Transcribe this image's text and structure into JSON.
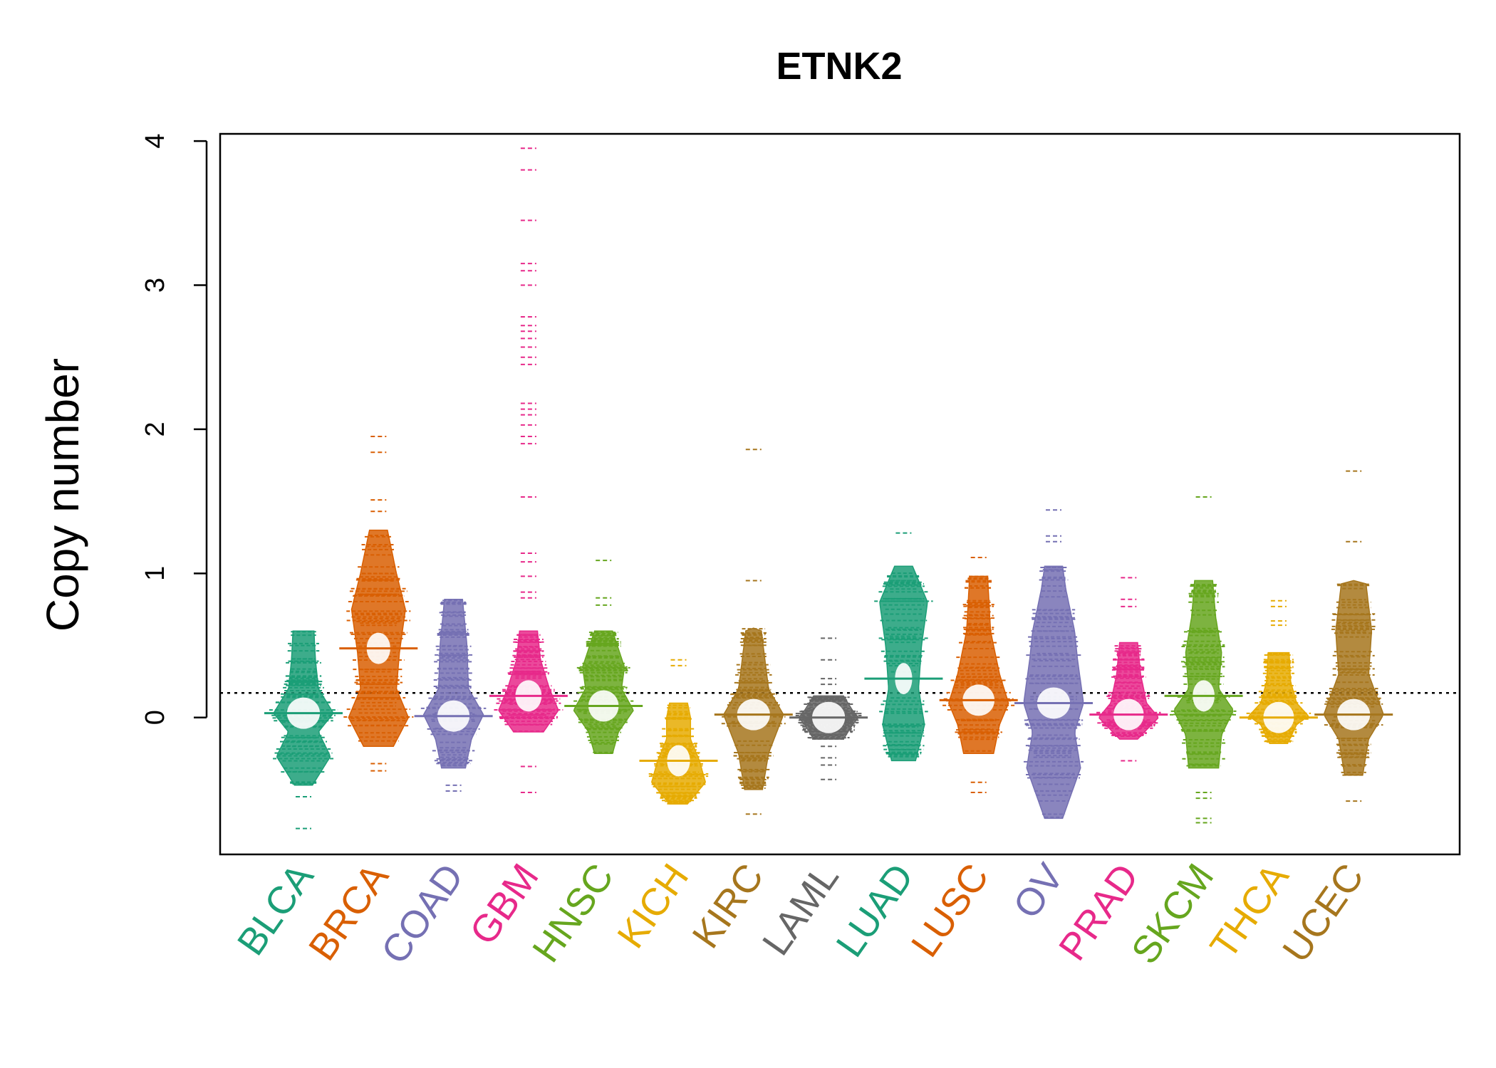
{
  "chart_data": {
    "type": "beanplot",
    "title": "ETNK2",
    "xlabel": "",
    "ylabel": "Copy number",
    "ylim": [
      -0.95,
      4.05
    ],
    "yticks": [
      0,
      1,
      2,
      3,
      4
    ],
    "reference_line": 0.17,
    "categories": [
      "BLCA",
      "BRCA",
      "COAD",
      "GBM",
      "HNSC",
      "KICH",
      "KIRC",
      "LAML",
      "LUAD",
      "LUSC",
      "OV",
      "PRAD",
      "SKCM",
      "THCA",
      "UCEC"
    ],
    "colors": [
      "#1B9E77",
      "#D95F02",
      "#7570B3",
      "#E7298A",
      "#66A61E",
      "#E6AB02",
      "#A6761D",
      "#666666",
      "#1B9E77",
      "#D95F02",
      "#7570B3",
      "#E7298A",
      "#66A61E",
      "#E6AB02",
      "#A6761D"
    ],
    "series": [
      {
        "name": "BLCA",
        "min": -0.77,
        "max": 0.61,
        "mean": 0.03,
        "outliers": [
          -0.77,
          -0.55
        ],
        "density": [
          [
            -0.47,
            0.3
          ],
          [
            -0.27,
            0.9
          ],
          [
            -0.1,
            0.5
          ],
          [
            0.03,
            1.0
          ],
          [
            0.2,
            0.5
          ],
          [
            0.4,
            0.4
          ],
          [
            0.6,
            0.35
          ]
        ]
      },
      {
        "name": "BRCA",
        "min": -0.37,
        "max": 1.95,
        "mean": 0.48,
        "outliers": [
          1.95,
          1.84,
          1.51,
          1.43,
          -0.32,
          -0.37
        ],
        "density": [
          [
            -0.2,
            0.5
          ],
          [
            0.0,
            1.0
          ],
          [
            0.2,
            0.6
          ],
          [
            0.45,
            0.7
          ],
          [
            0.75,
            0.9
          ],
          [
            1.0,
            0.6
          ],
          [
            1.3,
            0.3
          ]
        ]
      },
      {
        "name": "COAD",
        "min": -0.51,
        "max": 0.82,
        "mean": 0.01,
        "outliers": [
          -0.47,
          -0.51
        ],
        "density": [
          [
            -0.35,
            0.4
          ],
          [
            -0.15,
            0.6
          ],
          [
            0.02,
            1.0
          ],
          [
            0.2,
            0.5
          ],
          [
            0.5,
            0.45
          ],
          [
            0.82,
            0.3
          ]
        ]
      },
      {
        "name": "GBM",
        "min": -0.52,
        "max": 3.95,
        "mean": 0.15,
        "outliers": [
          3.95,
          3.8,
          3.45,
          3.15,
          3.1,
          3.0,
          2.78,
          2.72,
          2.68,
          2.63,
          2.57,
          2.5,
          2.45,
          2.18,
          2.14,
          2.1,
          2.03,
          1.95,
          1.9,
          1.53,
          1.14,
          1.08,
          0.98,
          0.87,
          0.83,
          -0.34,
          -0.52
        ],
        "density": [
          [
            -0.1,
            0.5
          ],
          [
            0.05,
            1.0
          ],
          [
            0.2,
            0.7
          ],
          [
            0.4,
            0.4
          ],
          [
            0.6,
            0.3
          ]
        ]
      },
      {
        "name": "HNSC",
        "min": -0.26,
        "max": 1.09,
        "mean": 0.08,
        "outliers": [
          1.09,
          0.83,
          0.78
        ],
        "density": [
          [
            -0.25,
            0.3
          ],
          [
            -0.1,
            0.5
          ],
          [
            0.05,
            1.0
          ],
          [
            0.2,
            0.6
          ],
          [
            0.35,
            0.7
          ],
          [
            0.6,
            0.3
          ]
        ]
      },
      {
        "name": "KICH",
        "min": -0.63,
        "max": 0.4,
        "mean": -0.3,
        "outliers": [
          0.4,
          0.36
        ],
        "density": [
          [
            -0.6,
            0.3
          ],
          [
            -0.45,
            0.9
          ],
          [
            -0.3,
            0.7
          ],
          [
            -0.15,
            0.4
          ],
          [
            0.0,
            0.4
          ],
          [
            0.1,
            0.3
          ]
        ]
      },
      {
        "name": "KIRC",
        "min": -0.67,
        "max": 1.86,
        "mean": 0.02,
        "outliers": [
          1.86,
          0.95,
          -0.67
        ],
        "density": [
          [
            -0.5,
            0.3
          ],
          [
            -0.25,
            0.5
          ],
          [
            0.02,
            1.0
          ],
          [
            0.2,
            0.5
          ],
          [
            0.45,
            0.35
          ],
          [
            0.62,
            0.25
          ]
        ]
      },
      {
        "name": "LAML",
        "min": -0.43,
        "max": 0.55,
        "mean": 0.0,
        "outliers": [
          0.55,
          0.4,
          0.27,
          0.23,
          -0.1,
          -0.2,
          -0.28,
          -0.33,
          -0.43
        ],
        "density": [
          [
            -0.15,
            0.5
          ],
          [
            -0.05,
            0.8
          ],
          [
            0.0,
            1.0
          ],
          [
            0.05,
            0.8
          ],
          [
            0.15,
            0.5
          ]
        ]
      },
      {
        "name": "LUAD",
        "min": -0.31,
        "max": 1.28,
        "mean": 0.27,
        "outliers": [
          1.28
        ],
        "density": [
          [
            -0.3,
            0.4
          ],
          [
            -0.05,
            0.7
          ],
          [
            0.2,
            0.5
          ],
          [
            0.5,
            0.6
          ],
          [
            0.8,
            0.8
          ],
          [
            1.05,
            0.3
          ]
        ]
      },
      {
        "name": "LUSC",
        "min": -0.52,
        "max": 1.11,
        "mean": 0.12,
        "outliers": [
          1.11,
          -0.45,
          -0.52
        ],
        "density": [
          [
            -0.25,
            0.5
          ],
          [
            -0.05,
            0.7
          ],
          [
            0.1,
            1.0
          ],
          [
            0.3,
            0.7
          ],
          [
            0.6,
            0.4
          ],
          [
            0.98,
            0.3
          ]
        ]
      },
      {
        "name": "OV",
        "min": -0.75,
        "max": 1.44,
        "mean": 0.1,
        "outliers": [
          1.44,
          1.26,
          1.22
        ],
        "density": [
          [
            -0.7,
            0.3
          ],
          [
            -0.35,
            0.9
          ],
          [
            -0.1,
            0.7
          ],
          [
            0.1,
            1.0
          ],
          [
            0.4,
            0.8
          ],
          [
            0.6,
            0.7
          ],
          [
            0.9,
            0.4
          ],
          [
            1.05,
            0.3
          ]
        ]
      },
      {
        "name": "PRAD",
        "min": -0.3,
        "max": 0.97,
        "mean": 0.02,
        "outliers": [
          0.97,
          0.82,
          0.77,
          -0.3
        ],
        "density": [
          [
            -0.15,
            0.3
          ],
          [
            0.0,
            1.0
          ],
          [
            0.1,
            0.6
          ],
          [
            0.3,
            0.4
          ],
          [
            0.52,
            0.3
          ]
        ]
      },
      {
        "name": "SKCM",
        "min": -0.73,
        "max": 1.53,
        "mean": 0.15,
        "outliers": [
          1.53,
          -0.52,
          -0.56,
          -0.7,
          -0.73
        ],
        "density": [
          [
            -0.35,
            0.5
          ],
          [
            -0.12,
            0.6
          ],
          [
            0.05,
            1.0
          ],
          [
            0.2,
            0.5
          ],
          [
            0.45,
            0.6
          ],
          [
            0.7,
            0.4
          ],
          [
            0.95,
            0.3
          ]
        ]
      },
      {
        "name": "THCA",
        "min": -0.19,
        "max": 0.81,
        "mean": 0.0,
        "outliers": [
          0.81,
          0.77,
          0.67,
          0.64
        ],
        "density": [
          [
            -0.18,
            0.3
          ],
          [
            -0.05,
            0.6
          ],
          [
            0.01,
            1.0
          ],
          [
            0.1,
            0.6
          ],
          [
            0.25,
            0.4
          ],
          [
            0.45,
            0.35
          ]
        ]
      },
      {
        "name": "UCEC",
        "min": -0.58,
        "max": 1.71,
        "mean": 0.02,
        "outliers": [
          1.71,
          1.22,
          -0.58
        ],
        "density": [
          [
            -0.4,
            0.3
          ],
          [
            -0.15,
            0.5
          ],
          [
            0.02,
            1.0
          ],
          [
            0.3,
            0.5
          ],
          [
            0.6,
            0.6
          ],
          [
            0.95,
            0.4
          ]
        ]
      }
    ]
  }
}
